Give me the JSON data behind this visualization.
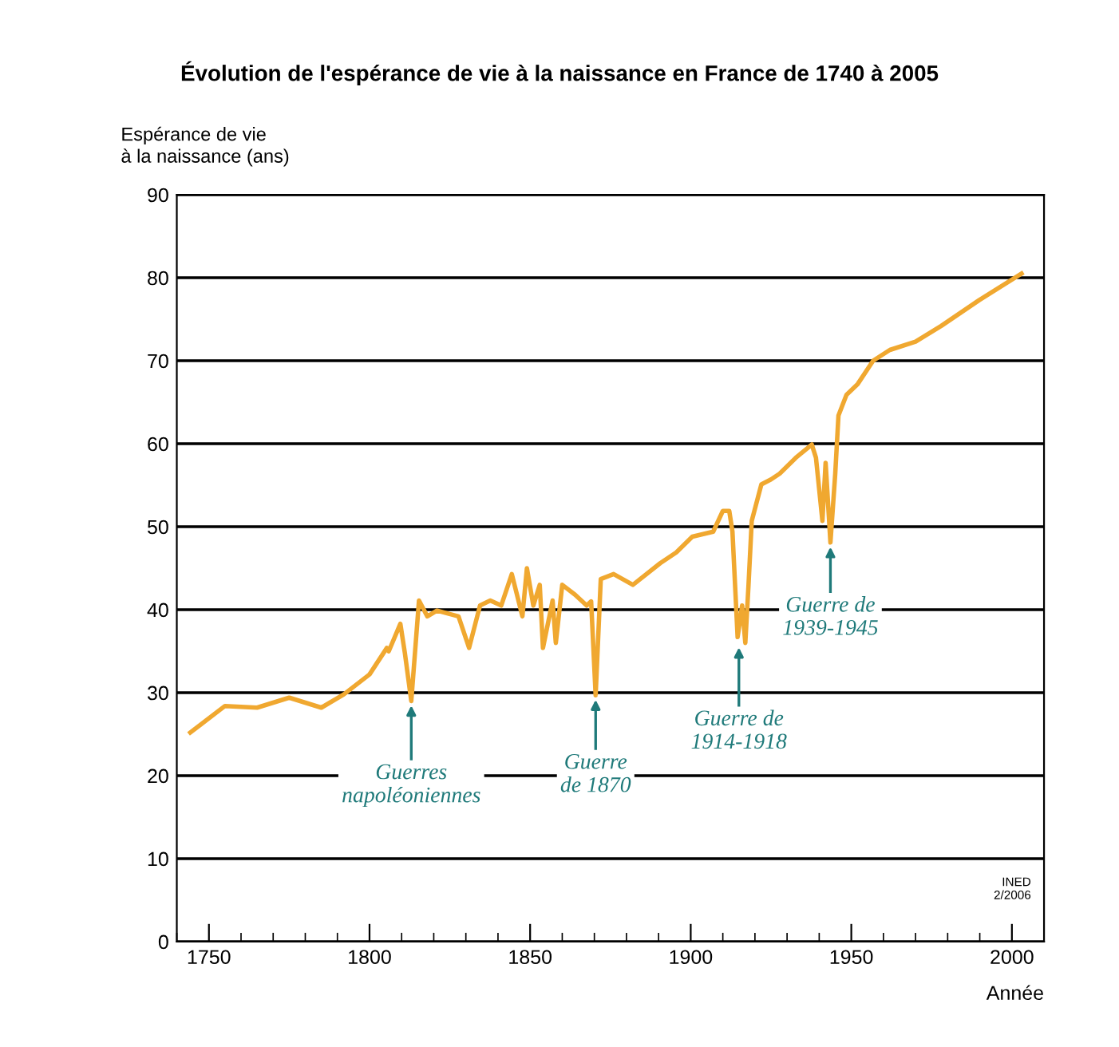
{
  "chart_data": {
    "type": "line",
    "title": "Évolution de l'espérance de vie à la naissance en France de 1740 à 2005",
    "ylabel": "Espérance de vie\nà la naissance (ans)",
    "xlabel": "Année",
    "x": [
      1744.2,
      1755,
      1765,
      1775,
      1785,
      1792,
      1800,
      1805.4,
      1806,
      1809.6,
      1811,
      1813,
      1815.4,
      1818,
      1821,
      1827.7,
      1831,
      1834.4,
      1837.6,
      1841,
      1844.3,
      1847.6,
      1849,
      1851,
      1853,
      1854,
      1857,
      1858,
      1860,
      1864,
      1867.6,
      1869,
      1870.4,
      1872,
      1876,
      1882,
      1890.5,
      1895.5,
      1900.5,
      1907,
      1910,
      1912,
      1913,
      1914.6,
      1916,
      1917,
      1918,
      1919,
      1922,
      1925,
      1927.7,
      1932.7,
      1937.7,
      1939,
      1941,
      1942,
      1943.5,
      1945,
      1946,
      1948.5,
      1952,
      1956.8,
      1962,
      1970,
      1978,
      1989.8,
      2003
    ],
    "series": [
      {
        "color": "#f0a830",
        "values": [
          25.2,
          28.4,
          28.2,
          29.4,
          28.2,
          29.8,
          32.2,
          35.4,
          35,
          38.3,
          34.8,
          29,
          41.1,
          39.2,
          39.9,
          39.2,
          35.4,
          40.5,
          41.1,
          40.5,
          44.3,
          39.2,
          45,
          40.5,
          43,
          35.4,
          41.1,
          36,
          43,
          41.8,
          40.5,
          41,
          29.7,
          43.7,
          44.3,
          43,
          45.6,
          46.9,
          48.8,
          49.4,
          51.9,
          51.9,
          49.4,
          36.7,
          40.5,
          36,
          43,
          50.7,
          55.1,
          55.7,
          56.4,
          58.3,
          59.9,
          58.3,
          50.7,
          57.7,
          48.1,
          56.4,
          63.4,
          65.9,
          67.2,
          70,
          71.3,
          72.3,
          74.2,
          77.3,
          80.5
        ]
      }
    ],
    "xlim": [
      1740,
      2010
    ],
    "ylim": [
      0,
      90
    ],
    "xticks": [
      {
        "value": 1740,
        "label": null
      },
      1750,
      {
        "value": 1760,
        "label": null
      },
      {
        "value": 1770,
        "label": null
      },
      {
        "value": 1780,
        "label": null
      },
      {
        "value": 1790,
        "label": null
      },
      1800,
      {
        "value": 1810,
        "label": null
      },
      {
        "value": 1820,
        "label": null
      },
      {
        "value": 1830,
        "label": null
      },
      {
        "value": 1840,
        "label": null
      },
      1850,
      {
        "value": 1860,
        "label": null
      },
      {
        "value": 1870,
        "label": null
      },
      {
        "value": 1880,
        "label": null
      },
      {
        "value": 1890,
        "label": null
      },
      1900,
      {
        "value": 1910,
        "label": null
      },
      {
        "value": 1920,
        "label": null
      },
      {
        "value": 1930,
        "label": null
      },
      {
        "value": 1940,
        "label": null
      },
      1950,
      {
        "value": 1960,
        "label": null
      },
      {
        "value": 1970,
        "label": null
      },
      {
        "value": 1980,
        "label": null
      },
      {
        "value": 1990,
        "label": null
      },
      2000
    ],
    "yticks": [
      0,
      10,
      20,
      30,
      40,
      50,
      60,
      70,
      80,
      90
    ],
    "grid": "y",
    "legend": false,
    "marker": "none",
    "line_style": "solid",
    "annotations": [
      {
        "text": "Guerres\nnapoléoniennes",
        "x": 1813,
        "y": 29
      },
      {
        "text": "Guerre\nde 1870",
        "x": 1870.4,
        "y": 29.7
      },
      {
        "text": "Guerre de\n1914-1918",
        "x": 1915,
        "y": 36
      },
      {
        "text": "Guerre de\n1939-1945",
        "x": 1943.5,
        "y": 48.1
      },
      "INED\n2/2006"
    ]
  }
}
